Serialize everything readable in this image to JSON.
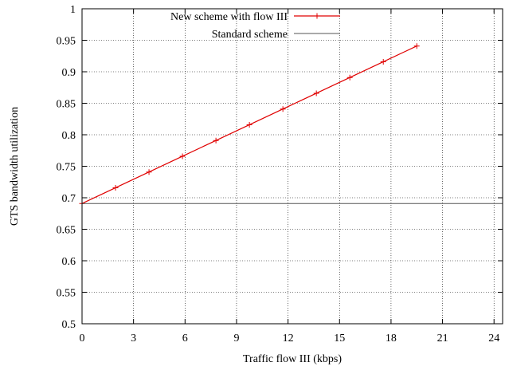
{
  "chart_data": {
    "type": "line",
    "xlabel": "Traffic flow III (kbps)",
    "ylabel": "GTS bandwidth utilization",
    "xlim": [
      0,
      24.5
    ],
    "ylim": [
      0.5,
      1
    ],
    "xticks": [
      "0",
      "3",
      "6",
      "9",
      "12",
      "15",
      "18",
      "21",
      "24"
    ],
    "yticks": [
      "0.5",
      "0.55",
      "0.6",
      "0.65",
      "0.7",
      "0.75",
      "0.8",
      "0.85",
      "0.9",
      "0.95",
      "1"
    ],
    "grid": true,
    "legend_position": "top-center",
    "series": [
      {
        "name": "New scheme with flow III",
        "color": "#e00000",
        "marker": "plus",
        "x": [
          0,
          1.95,
          3.9,
          5.85,
          7.8,
          9.75,
          11.7,
          13.65,
          15.6,
          17.55,
          19.5
        ],
        "y": [
          0.6909,
          0.7159,
          0.7409,
          0.7659,
          0.7909,
          0.8159,
          0.8409,
          0.8659,
          0.8909,
          0.9159,
          0.9409
        ]
      },
      {
        "name": "Standard scheme",
        "color": "#555555",
        "marker": "none",
        "x": [
          0,
          24.5
        ],
        "y": [
          0.6909,
          0.6909
        ]
      }
    ]
  }
}
